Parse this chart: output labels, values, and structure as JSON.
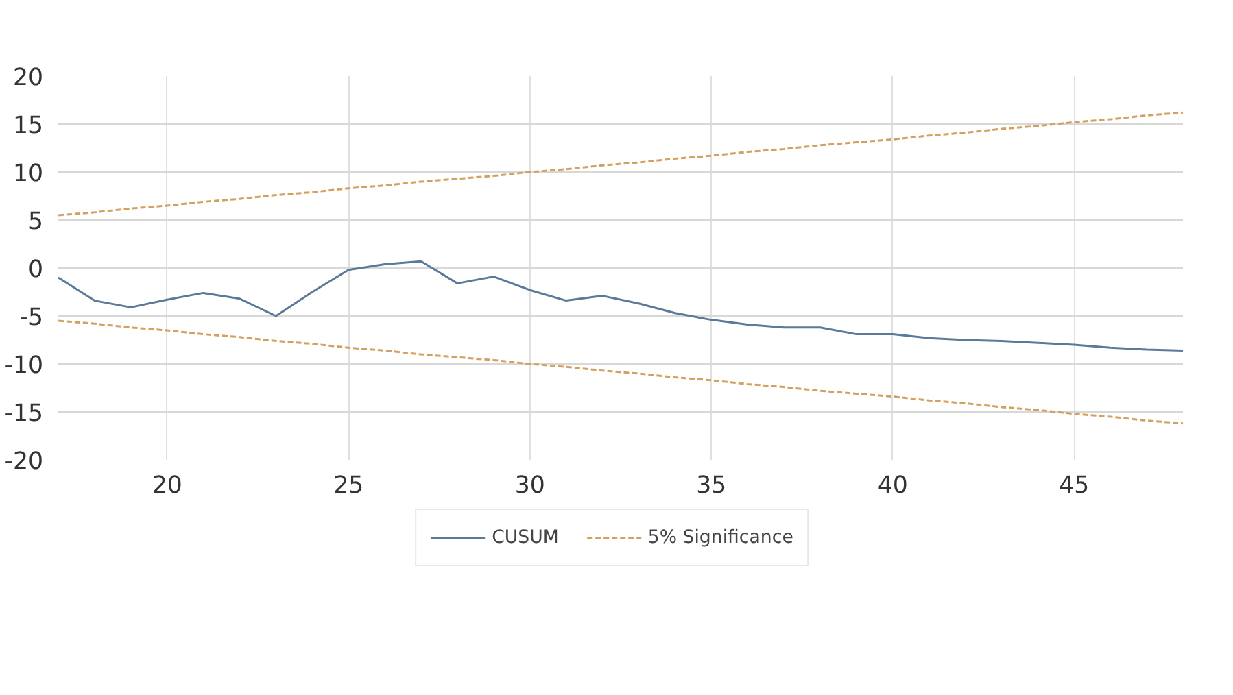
{
  "chart_data": {
    "type": "line",
    "x": [
      17,
      18,
      19,
      20,
      21,
      22,
      23,
      24,
      25,
      26,
      27,
      28,
      29,
      30,
      31,
      32,
      33,
      34,
      35,
      36,
      37,
      38,
      39,
      40,
      41,
      42,
      43,
      44,
      45,
      46,
      47,
      48
    ],
    "xlim": [
      17,
      48
    ],
    "xticks": [
      20,
      25,
      30,
      35,
      40,
      45
    ],
    "ylim": [
      -20,
      20
    ],
    "yticks": [
      -20,
      -15,
      -10,
      -5,
      0,
      5,
      10,
      15,
      20
    ],
    "grid": true,
    "legend": "bottom",
    "series": [
      {
        "name": "CUSUM",
        "color": "#5a7a9a",
        "line_style": "solid",
        "values": [
          -1.0,
          -3.4,
          -4.1,
          -3.3,
          -2.6,
          -3.2,
          -5.0,
          -2.5,
          -0.2,
          0.4,
          0.7,
          -1.6,
          -0.9,
          -2.3,
          -3.4,
          -2.9,
          -3.7,
          -4.7,
          -5.4,
          -5.9,
          -6.2,
          -6.2,
          -6.9,
          -6.9,
          -7.3,
          -7.5,
          -7.6,
          -7.8,
          -8.0,
          -8.3,
          -8.5,
          -8.6
        ]
      },
      {
        "name": "5% Significance",
        "color": "#d4a060",
        "line_style": "dashed",
        "values": [
          5.5,
          5.8,
          6.2,
          6.5,
          6.9,
          7.2,
          7.6,
          7.9,
          8.3,
          8.6,
          9.0,
          9.3,
          9.6,
          10.0,
          10.3,
          10.7,
          11.0,
          11.4,
          11.7,
          12.1,
          12.4,
          12.8,
          13.1,
          13.4,
          13.8,
          14.1,
          14.5,
          14.8,
          15.2,
          15.5,
          15.9,
          16.2
        ]
      },
      {
        "color": "#d4a060",
        "line_style": "dashed",
        "values": [
          -5.5,
          -5.8,
          -6.2,
          -6.5,
          -6.9,
          -7.2,
          -7.6,
          -7.9,
          -8.3,
          -8.6,
          -9.0,
          -9.3,
          -9.6,
          -10.0,
          -10.3,
          -10.7,
          -11.0,
          -11.4,
          -11.7,
          -12.1,
          -12.4,
          -12.8,
          -13.1,
          -13.4,
          -13.8,
          -14.1,
          -14.5,
          -14.8,
          -15.2,
          -15.5,
          -15.9,
          -16.2
        ]
      }
    ]
  }
}
